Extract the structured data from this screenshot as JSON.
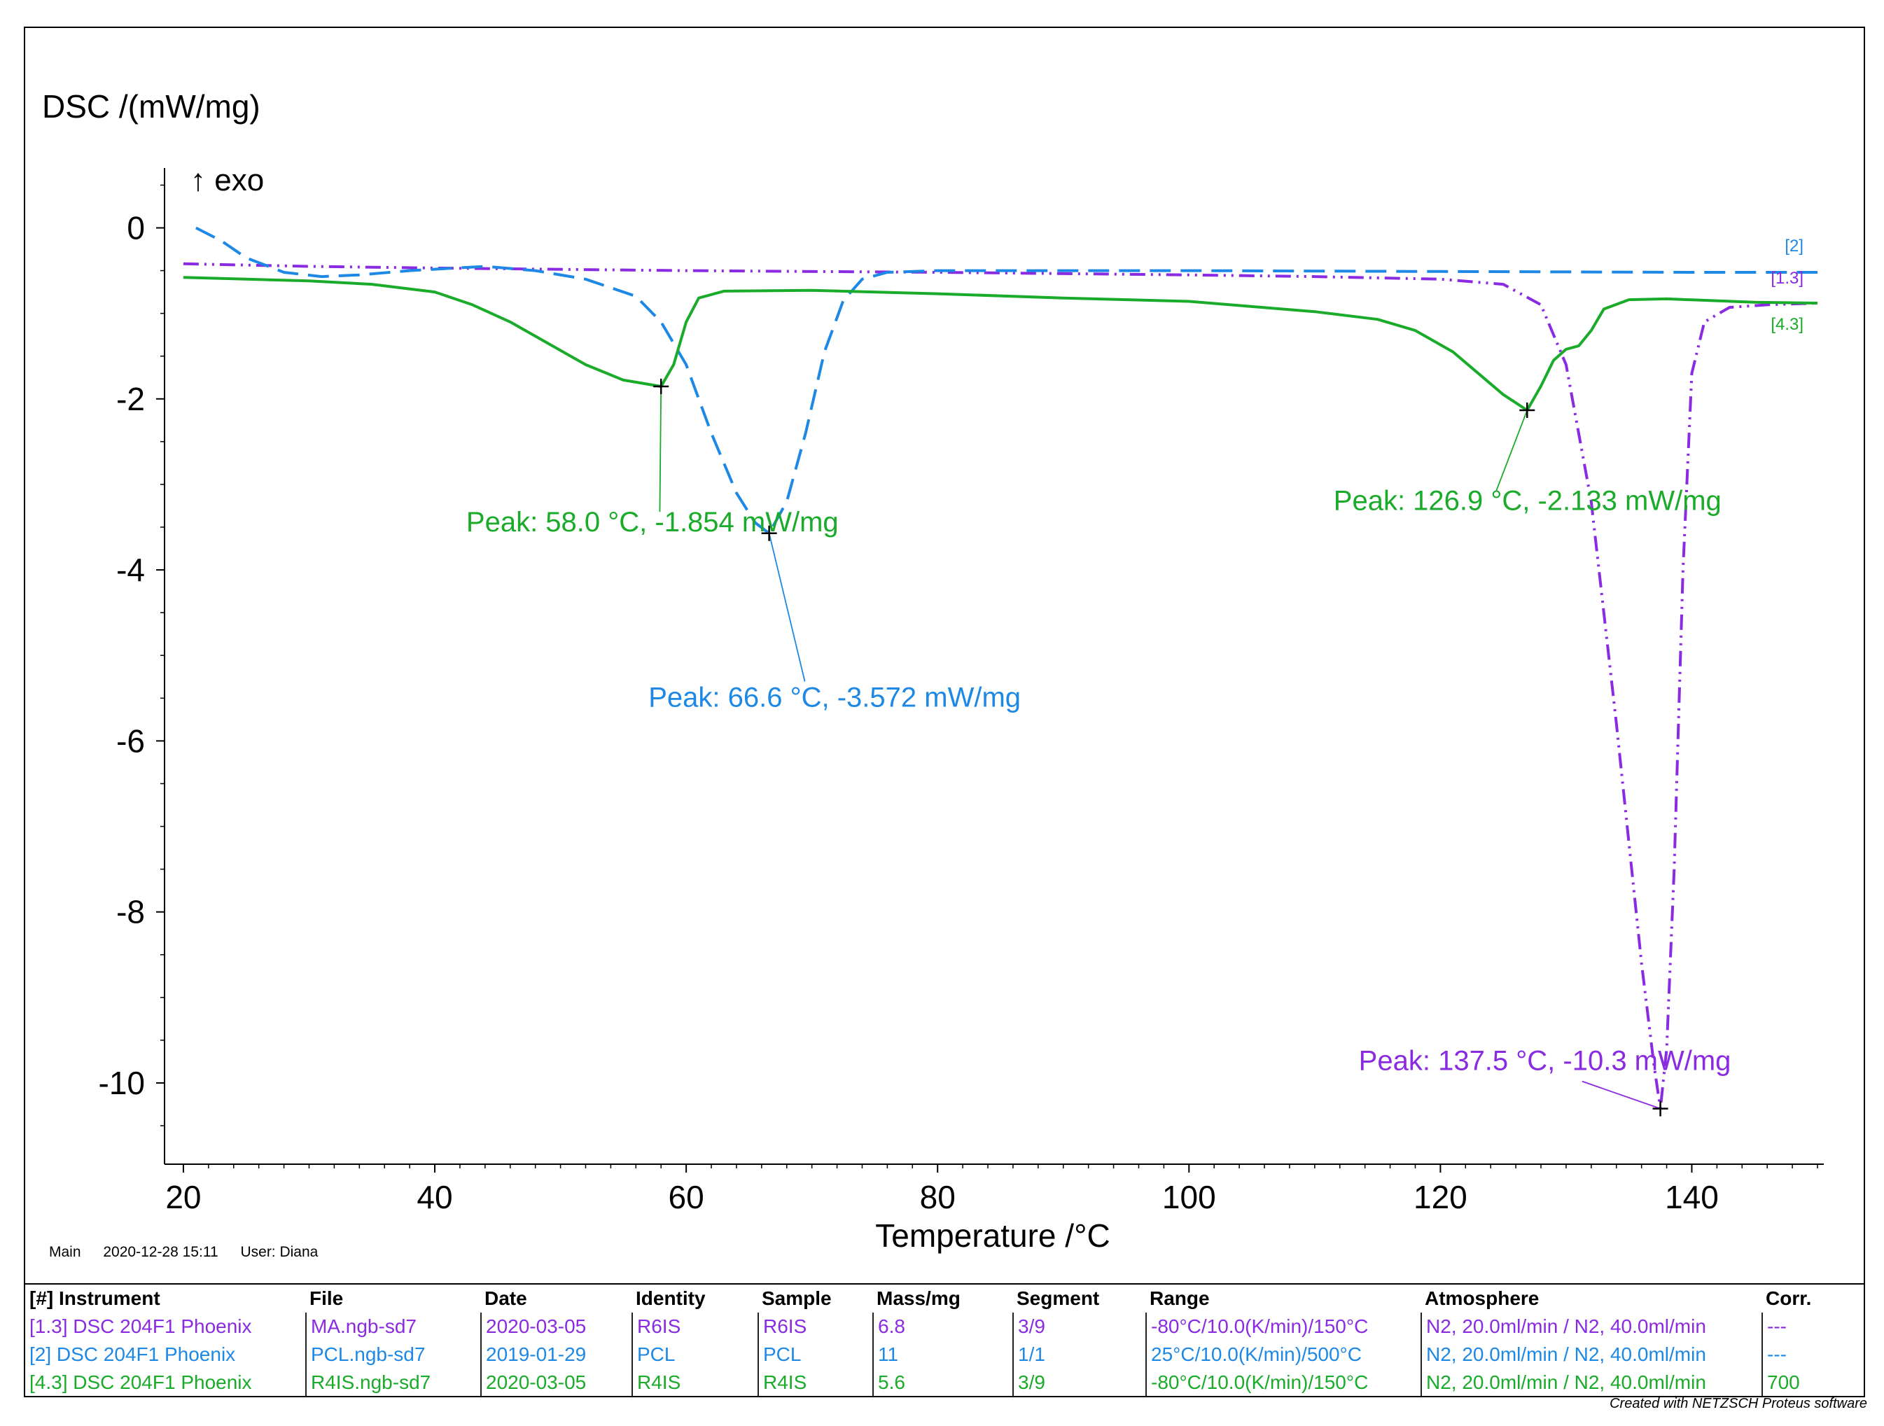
{
  "chart_data": {
    "type": "line",
    "ylabel": "DSC /(mW/mg)",
    "exo_label": "↑ exo",
    "xlabel": "Temperature /°C",
    "xlim": [
      18.5,
      150.5
    ],
    "ylim": [
      -10.95,
      0.7
    ],
    "x_ticks": [
      20,
      40,
      60,
      80,
      100,
      120,
      140
    ],
    "y_ticks": [
      0,
      -2,
      -4,
      -6,
      -8,
      -10
    ],
    "series": [
      {
        "name": "[1.3] DSC 204F1 Phoenix",
        "end_label": "[1.3]",
        "color": "#8a2be2",
        "dash": "dashdotdot",
        "points": [
          [
            20,
            -0.42
          ],
          [
            30,
            -0.45
          ],
          [
            40,
            -0.47
          ],
          [
            60,
            -0.5
          ],
          [
            80,
            -0.52
          ],
          [
            100,
            -0.55
          ],
          [
            110,
            -0.57
          ],
          [
            120,
            -0.6
          ],
          [
            125,
            -0.66
          ],
          [
            128,
            -0.9
          ],
          [
            130,
            -1.6
          ],
          [
            132,
            -3.2
          ],
          [
            134,
            -5.8
          ],
          [
            136,
            -8.6
          ],
          [
            137,
            -9.8
          ],
          [
            137.5,
            -10.3
          ],
          [
            138,
            -9.6
          ],
          [
            138.6,
            -7.5
          ],
          [
            139.3,
            -4.0
          ],
          [
            140,
            -1.7
          ],
          [
            141,
            -1.1
          ],
          [
            143,
            -0.93
          ],
          [
            146,
            -0.9
          ],
          [
            150,
            -0.88
          ]
        ]
      },
      {
        "name": "[2] DSC 204F1 Phoenix",
        "end_label": "[2]",
        "color": "#1e88e5",
        "dash": "dash",
        "points": [
          [
            21,
            0.0
          ],
          [
            23,
            -0.15
          ],
          [
            25,
            -0.35
          ],
          [
            28,
            -0.52
          ],
          [
            31,
            -0.57
          ],
          [
            34,
            -0.55
          ],
          [
            38,
            -0.5
          ],
          [
            44,
            -0.45
          ],
          [
            48,
            -0.5
          ],
          [
            52,
            -0.6
          ],
          [
            56,
            -0.8
          ],
          [
            58,
            -1.1
          ],
          [
            60,
            -1.6
          ],
          [
            62,
            -2.4
          ],
          [
            64,
            -3.1
          ],
          [
            65.5,
            -3.45
          ],
          [
            66.6,
            -3.572
          ],
          [
            68,
            -3.2
          ],
          [
            69.5,
            -2.4
          ],
          [
            71,
            -1.45
          ],
          [
            72.5,
            -0.85
          ],
          [
            74,
            -0.6
          ],
          [
            76,
            -0.52
          ],
          [
            80,
            -0.5
          ],
          [
            100,
            -0.5
          ],
          [
            120,
            -0.51
          ],
          [
            140,
            -0.52
          ],
          [
            150,
            -0.52
          ]
        ]
      },
      {
        "name": "[4.3] DSC 204F1 Phoenix",
        "end_label": "[4.3]",
        "color": "#1aab2a",
        "dash": "solid",
        "points": [
          [
            20,
            -0.58
          ],
          [
            25,
            -0.6
          ],
          [
            30,
            -0.62
          ],
          [
            35,
            -0.66
          ],
          [
            40,
            -0.75
          ],
          [
            43,
            -0.9
          ],
          [
            46,
            -1.1
          ],
          [
            49,
            -1.35
          ],
          [
            52,
            -1.6
          ],
          [
            55,
            -1.78
          ],
          [
            58,
            -1.854
          ],
          [
            59,
            -1.6
          ],
          [
            60,
            -1.1
          ],
          [
            61,
            -0.82
          ],
          [
            63,
            -0.74
          ],
          [
            70,
            -0.73
          ],
          [
            80,
            -0.77
          ],
          [
            90,
            -0.82
          ],
          [
            100,
            -0.86
          ],
          [
            105,
            -0.92
          ],
          [
            110,
            -0.98
          ],
          [
            115,
            -1.07
          ],
          [
            118,
            -1.2
          ],
          [
            121,
            -1.45
          ],
          [
            123,
            -1.7
          ],
          [
            125,
            -1.95
          ],
          [
            126.9,
            -2.133
          ],
          [
            128,
            -1.85
          ],
          [
            129,
            -1.55
          ],
          [
            130,
            -1.42
          ],
          [
            131,
            -1.38
          ],
          [
            132,
            -1.2
          ],
          [
            133,
            -0.95
          ],
          [
            135,
            -0.84
          ],
          [
            138,
            -0.83
          ],
          [
            145,
            -0.87
          ],
          [
            150,
            -0.88
          ]
        ]
      }
    ],
    "annotations": [
      {
        "series": 2,
        "text": "Peak: 58.0 °C, -1.854 mW/mg",
        "x": 58.0,
        "y": -1.854,
        "label_x": 42.5,
        "label_y": -3.55
      },
      {
        "series": 1,
        "text": "Peak: 66.6 °C, -3.572 mW/mg",
        "x": 66.6,
        "y": -3.572,
        "label_x": 57.0,
        "label_y": -5.6
      },
      {
        "series": 2,
        "text": "Peak: 126.9 °C, -2.133 mW/mg",
        "x": 126.9,
        "y": -2.133,
        "label_x": 111.5,
        "label_y": -3.3
      },
      {
        "series": 0,
        "text": "Peak: 137.5 °C, -10.3 mW/mg",
        "x": 137.5,
        "y": -10.3,
        "label_x": 113.5,
        "label_y": -9.85
      }
    ]
  },
  "meta": {
    "tab": "Main",
    "datetime": "2020-12-28 15:11",
    "user": "User: Diana"
  },
  "legend": {
    "headers": [
      "[#] Instrument",
      "File",
      "Date",
      "Identity",
      "Sample",
      "Mass/mg",
      "Segment",
      "Range",
      "Atmosphere",
      "Corr."
    ],
    "rows": [
      {
        "color": "#8a2be2",
        "cells": [
          "[1.3] DSC 204F1 Phoenix",
          "MA.ngb-sd7",
          "2020-03-05",
          "R6IS",
          "R6IS",
          "6.8",
          "3/9",
          "-80°C/10.0(K/min)/150°C",
          "N2, 20.0ml/min / N2, 40.0ml/min",
          "---"
        ]
      },
      {
        "color": "#1e88e5",
        "cells": [
          "[2] DSC 204F1 Phoenix",
          "PCL.ngb-sd7",
          "2019-01-29",
          "PCL",
          "PCL",
          "11",
          "1/1",
          "25°C/10.0(K/min)/500°C",
          "N2, 20.0ml/min / N2, 40.0ml/min",
          "---"
        ]
      },
      {
        "color": "#1aab2a",
        "cells": [
          "[4.3] DSC 204F1 Phoenix",
          "R4IS.ngb-sd7",
          "2020-03-05",
          "R4IS",
          "R4IS",
          "5.6",
          "3/9",
          "-80°C/10.0(K/min)/150°C",
          "N2, 20.0ml/min / N2, 40.0ml/min",
          "700"
        ]
      }
    ]
  },
  "credit": "Created with NETZSCH Proteus software"
}
